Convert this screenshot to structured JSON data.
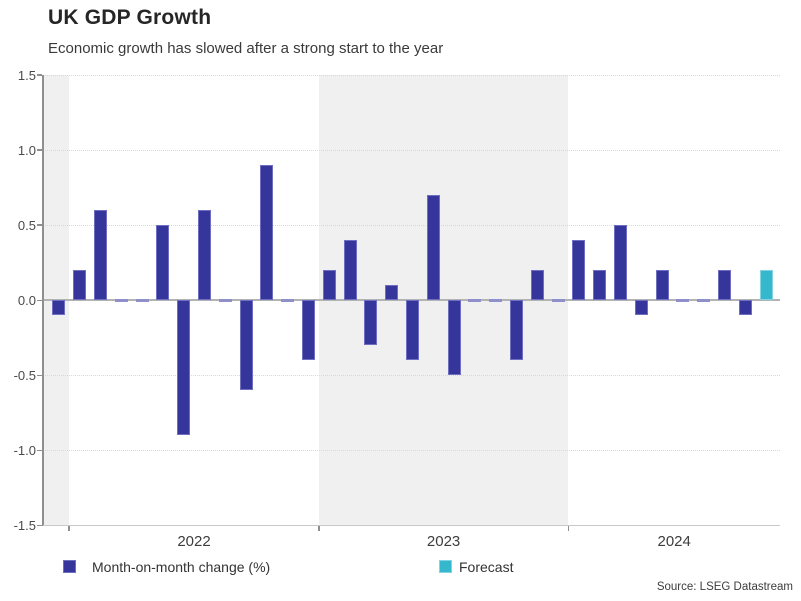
{
  "header": {
    "title": "UK GDP Growth",
    "subtitle": "Economic growth has slowed after a strong start to the year"
  },
  "legend": {
    "series_label": "Month-on-month change (%)",
    "forecast_label": "Forecast"
  },
  "source": "Source: LSEG Datastream",
  "chart_data": {
    "type": "bar",
    "title": "UK GDP Growth",
    "subtitle": "Economic growth has slowed after a strong start to the year",
    "xlabel": "",
    "ylabel": "",
    "x_unit": "month",
    "ylim": [
      -1.5,
      1.5
    ],
    "yticks": [
      1.5,
      1.0,
      0.5,
      0.0,
      -0.5,
      -1.0,
      -1.5
    ],
    "ytick_labels": [
      "1.5",
      "1.0",
      "0.5",
      "0.0",
      "-0.5",
      "-1.0",
      "-1.5"
    ],
    "x_year_labels": [
      "2022",
      "2023",
      "2024"
    ],
    "year_boundaries": [
      0.5,
      12.5,
      24.5
    ],
    "shaded_bands": [
      {
        "from": null,
        "to": 0.5
      },
      {
        "from": 12.5,
        "to": 24.5
      }
    ],
    "grid": "dotted horizontal gridlines, solid zero line",
    "legend_position": "bottom",
    "values": [
      -0.1,
      0.2,
      0.6,
      0.0,
      0.0,
      0.5,
      -0.9,
      0.6,
      0.0,
      -0.6,
      0.9,
      0.0,
      -0.4,
      0.2,
      0.4,
      -0.3,
      0.1,
      -0.4,
      0.7,
      -0.5,
      0.0,
      0.0,
      -0.4,
      0.2,
      0.0,
      0.4,
      0.2,
      0.5,
      -0.1,
      0.2,
      0.0,
      0.0,
      0.2,
      -0.1,
      0.2
    ],
    "forecast_start_index": 34,
    "series": [
      {
        "name": "Month-on-month change (%)",
        "color": "#35359c",
        "edge_color": "#6f6fc2"
      },
      {
        "name": "Forecast",
        "color": "#35b8ce",
        "edge_color": "#82d4e2"
      }
    ],
    "zero_bar_color": "#8f8fc9",
    "band_color": "#f0f0f0",
    "zero_line_color": "#b3b3b3",
    "gridline_color": "#d8d8d8"
  }
}
